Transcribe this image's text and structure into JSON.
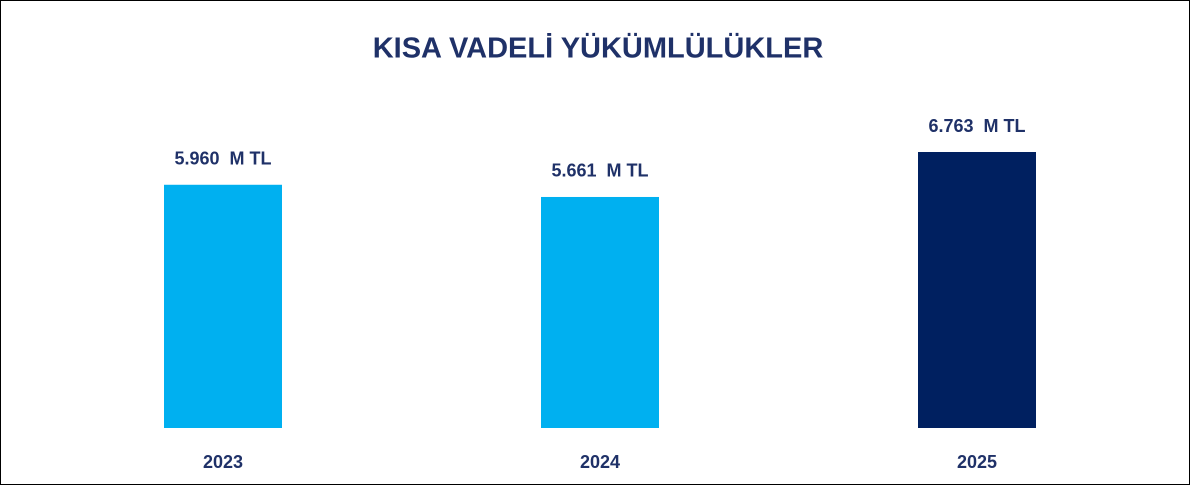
{
  "chart_data": {
    "type": "bar",
    "title": "KISA VADELİ YÜKÜMLÜLÜKLER",
    "categories": [
      "2023",
      "2024",
      "2025"
    ],
    "values": [
      5960,
      5661,
      6763
    ],
    "value_labels": [
      "5.960  M TL",
      "5.661  M TL",
      "6.763  M TL"
    ],
    "colors": [
      "#00b0f0",
      "#00b0f0",
      "#002060"
    ]
  }
}
